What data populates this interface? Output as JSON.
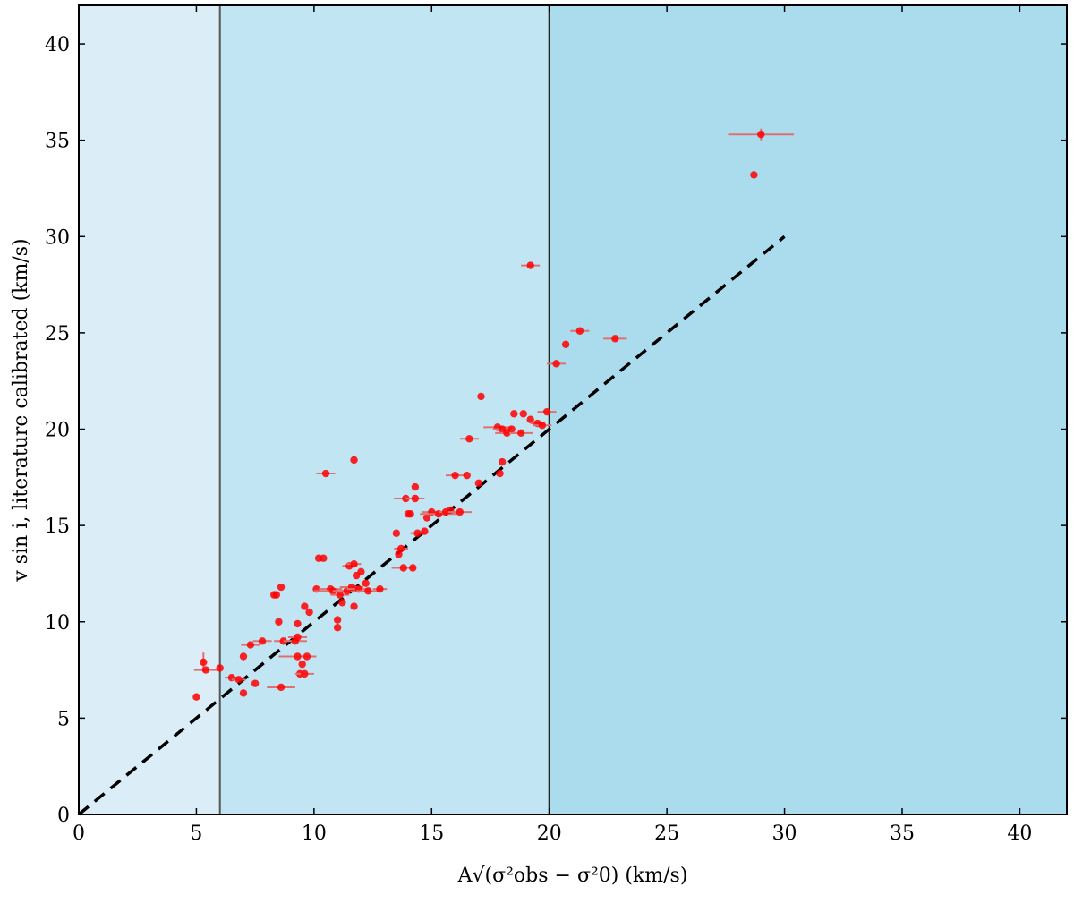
{
  "chart_data": {
    "type": "scatter",
    "xlabel": "A√(σ²obs − σ²0) (km/s)",
    "ylabel": "v sin i, literature calibrated (km/s)",
    "xlim": [
      0,
      42
    ],
    "ylim": [
      0,
      42
    ],
    "x_ticks": [
      "0",
      "5",
      "10",
      "15",
      "20",
      "25",
      "30",
      "35",
      "40"
    ],
    "y_ticks": [
      "0",
      "5",
      "10",
      "15",
      "20",
      "25",
      "30",
      "35",
      "40"
    ],
    "grid": false,
    "background_regions": [
      {
        "x_start": 0,
        "x_end": 6,
        "color": "#dbeef7"
      },
      {
        "x_start": 6,
        "x_end": 20,
        "color": "#c2e5f3"
      },
      {
        "x_start": 20,
        "x_end": 42,
        "color": "#abdcee"
      }
    ],
    "vertical_lines": [
      6,
      20
    ],
    "reference_line": {
      "style": "dashed",
      "color": "#000000",
      "x": [
        0,
        30
      ],
      "y": [
        0,
        30
      ]
    },
    "marker_color": "#ff0000",
    "errorbar_color": "#e07070",
    "points": [
      {
        "x": 5.0,
        "y": 6.1
      },
      {
        "x": 5.3,
        "y": 7.9,
        "yerr": 0.5
      },
      {
        "x": 5.4,
        "y": 7.5,
        "xerr": 0.5
      },
      {
        "x": 6.0,
        "y": 7.6
      },
      {
        "x": 6.5,
        "y": 7.1,
        "xerr": 0.3
      },
      {
        "x": 6.8,
        "y": 7.0,
        "xerr": 0.3
      },
      {
        "x": 7.0,
        "y": 6.3
      },
      {
        "x": 7.0,
        "y": 8.2
      },
      {
        "x": 7.3,
        "y": 8.8,
        "xerr": 0.4
      },
      {
        "x": 7.5,
        "y": 6.8
      },
      {
        "x": 7.8,
        "y": 9.0,
        "xerr": 0.4
      },
      {
        "x": 8.3,
        "y": 11.4
      },
      {
        "x": 8.4,
        "y": 11.4
      },
      {
        "x": 8.5,
        "y": 10.0
      },
      {
        "x": 8.6,
        "y": 6.6,
        "xerr": 0.6
      },
      {
        "x": 8.6,
        "y": 11.8
      },
      {
        "x": 8.7,
        "y": 9.0,
        "xerr": 0.4
      },
      {
        "x": 9.2,
        "y": 9.0,
        "xerr": 0.5
      },
      {
        "x": 9.3,
        "y": 8.2,
        "xerr": 0.8
      },
      {
        "x": 9.3,
        "y": 9.2,
        "xerr": 0.4
      },
      {
        "x": 9.3,
        "y": 9.9
      },
      {
        "x": 9.4,
        "y": 7.3
      },
      {
        "x": 9.5,
        "y": 7.8
      },
      {
        "x": 9.6,
        "y": 7.3,
        "xerr": 0.4
      },
      {
        "x": 9.6,
        "y": 10.8
      },
      {
        "x": 9.7,
        "y": 8.2
      },
      {
        "x": 9.8,
        "y": 10.5
      },
      {
        "x": 10.1,
        "y": 11.7
      },
      {
        "x": 10.2,
        "y": 13.3
      },
      {
        "x": 10.4,
        "y": 13.3
      },
      {
        "x": 10.5,
        "y": 17.7,
        "xerr": 0.4
      },
      {
        "x": 10.7,
        "y": 11.7,
        "xerr": 0.5
      },
      {
        "x": 10.8,
        "y": 11.6,
        "xerr": 0.8
      },
      {
        "x": 11.0,
        "y": 10.1
      },
      {
        "x": 11.0,
        "y": 9.7
      },
      {
        "x": 11.1,
        "y": 11.4,
        "xerr": 0.4
      },
      {
        "x": 11.2,
        "y": 11.0
      },
      {
        "x": 11.4,
        "y": 11.6,
        "xerr": 0.6
      },
      {
        "x": 11.5,
        "y": 12.9,
        "xerr": 0.3
      },
      {
        "x": 11.6,
        "y": 11.8,
        "xerr": 0.5
      },
      {
        "x": 11.7,
        "y": 18.4
      },
      {
        "x": 11.7,
        "y": 13.0,
        "xerr": 0.3
      },
      {
        "x": 11.8,
        "y": 12.4
      },
      {
        "x": 11.9,
        "y": 11.7,
        "xerr": 0.5
      },
      {
        "x": 11.7,
        "y": 10.8
      },
      {
        "x": 12.0,
        "y": 12.6
      },
      {
        "x": 12.2,
        "y": 12.0
      },
      {
        "x": 12.3,
        "y": 11.6,
        "xerr": 0.5
      },
      {
        "x": 12.8,
        "y": 11.7,
        "xerr": 0.3
      },
      {
        "x": 13.5,
        "y": 14.6
      },
      {
        "x": 13.6,
        "y": 13.5
      },
      {
        "x": 13.7,
        "y": 13.8,
        "xerr": 0.3
      },
      {
        "x": 13.8,
        "y": 12.8,
        "xerr": 0.5
      },
      {
        "x": 13.9,
        "y": 16.4,
        "xerr": 0.5
      },
      {
        "x": 14.0,
        "y": 15.6
      },
      {
        "x": 14.1,
        "y": 15.6
      },
      {
        "x": 14.2,
        "y": 12.8
      },
      {
        "x": 14.3,
        "y": 16.4,
        "xerr": 0.4
      },
      {
        "x": 14.3,
        "y": 17.0
      },
      {
        "x": 14.4,
        "y": 14.6,
        "xerr": 0.3
      },
      {
        "x": 14.7,
        "y": 14.7
      },
      {
        "x": 14.8,
        "y": 15.4
      },
      {
        "x": 15.0,
        "y": 15.7,
        "xerr": 0.4
      },
      {
        "x": 15.3,
        "y": 15.6,
        "xerr": 0.8
      },
      {
        "x": 15.6,
        "y": 15.7,
        "xerr": 0.3
      },
      {
        "x": 15.8,
        "y": 15.8
      },
      {
        "x": 16.2,
        "y": 15.7,
        "xerr": 0.5
      },
      {
        "x": 16.0,
        "y": 17.6,
        "xerr": 0.4
      },
      {
        "x": 16.5,
        "y": 17.6
      },
      {
        "x": 16.6,
        "y": 19.5,
        "xerr": 0.4
      },
      {
        "x": 17.0,
        "y": 17.2
      },
      {
        "x": 17.1,
        "y": 21.7
      },
      {
        "x": 17.8,
        "y": 20.1,
        "xerr": 0.6
      },
      {
        "x": 17.9,
        "y": 17.7
      },
      {
        "x": 18.0,
        "y": 18.3
      },
      {
        "x": 18.0,
        "y": 20.0,
        "xerr": 0.4
      },
      {
        "x": 18.2,
        "y": 19.8,
        "xerr": 0.5
      },
      {
        "x": 18.4,
        "y": 20.0
      },
      {
        "x": 18.5,
        "y": 20.8
      },
      {
        "x": 18.8,
        "y": 19.8,
        "xerr": 0.5
      },
      {
        "x": 18.9,
        "y": 20.8
      },
      {
        "x": 19.2,
        "y": 28.5,
        "xerr": 0.4
      },
      {
        "x": 19.2,
        "y": 20.5
      },
      {
        "x": 19.5,
        "y": 20.3,
        "xerr": 0.3
      },
      {
        "x": 19.7,
        "y": 20.2,
        "xerr": 0.4
      },
      {
        "x": 19.9,
        "y": 20.9,
        "xerr": 0.4
      },
      {
        "x": 20.3,
        "y": 23.4,
        "xerr": 0.4
      },
      {
        "x": 20.7,
        "y": 24.4
      },
      {
        "x": 21.3,
        "y": 25.1,
        "xerr": 0.4
      },
      {
        "x": 22.8,
        "y": 24.7,
        "xerr": 0.5
      },
      {
        "x": 28.7,
        "y": 33.2
      },
      {
        "x": 29.0,
        "y": 35.3,
        "xerr": 1.4,
        "yerr": 0.3
      }
    ]
  }
}
